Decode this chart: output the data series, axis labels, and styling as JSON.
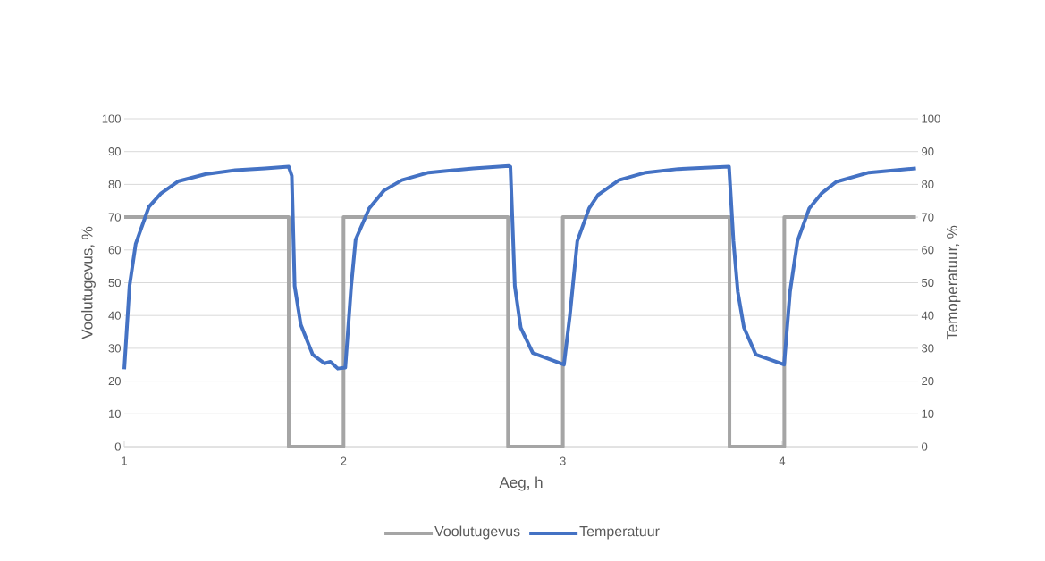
{
  "chart_data": {
    "type": "line",
    "xlabel": "Aeg, h",
    "ylabel": "Voolutugevus, %",
    "y2label": "Temoperatuur, %",
    "xlim": [
      1,
      4.62
    ],
    "xticks": [
      1,
      2,
      3,
      4
    ],
    "ylim": [
      0,
      100
    ],
    "yticks": [
      0,
      10,
      20,
      30,
      40,
      50,
      60,
      70,
      80,
      90,
      100
    ],
    "y2lim": [
      0,
      100
    ],
    "y2ticks": [
      0,
      10,
      20,
      30,
      40,
      50,
      60,
      70,
      80,
      90,
      100
    ],
    "grid": "y",
    "legend": "bottom",
    "line_style": "solid",
    "series": [
      {
        "name": "Voolutugevus",
        "color": "#a5a5a5",
        "x": [
          1,
          1.75,
          1.75,
          2,
          2,
          2.75,
          2.75,
          3,
          3,
          3.76,
          3.76,
          4.01,
          4.01,
          4.61
        ],
        "values": [
          70,
          70,
          0,
          0,
          70,
          70,
          0,
          0,
          70,
          70,
          0,
          0,
          70,
          70
        ]
      },
      {
        "name": "Temperatuur",
        "color": "#4472c4",
        "axis": "y2",
        "x": [
          1.0,
          1.024,
          1.052,
          1.112,
          1.167,
          1.248,
          1.37,
          1.506,
          1.642,
          1.75,
          1.764,
          1.777,
          1.805,
          1.859,
          1.913,
          1.94,
          1.974,
          2.008,
          2.035,
          2.055,
          2.117,
          2.184,
          2.266,
          2.388,
          2.591,
          2.754,
          2.761,
          2.781,
          2.808,
          2.863,
          3.005,
          3.032,
          3.066,
          3.12,
          3.161,
          3.256,
          3.378,
          3.527,
          3.758,
          3.778,
          3.798,
          3.826,
          3.88,
          4.009,
          4.036,
          4.07,
          4.124,
          4.179,
          4.247,
          4.396,
          4.61
        ],
        "values": [
          23.6,
          49,
          61.8,
          73.1,
          77.2,
          81.0,
          83.1,
          84.3,
          84.9,
          85.4,
          82.6,
          49,
          37.2,
          28.1,
          25.4,
          25.9,
          23.8,
          24.1,
          49,
          63.1,
          72.7,
          78.1,
          81.3,
          83.6,
          84.9,
          85.6,
          85.4,
          49,
          36.3,
          28.6,
          25.0,
          40,
          62.7,
          72.7,
          76.8,
          81.3,
          83.6,
          84.7,
          85.4,
          62.7,
          47.2,
          36.3,
          28.1,
          25.0,
          47.2,
          62.7,
          72.7,
          77.2,
          80.8,
          83.6,
          84.9
        ]
      }
    ]
  }
}
